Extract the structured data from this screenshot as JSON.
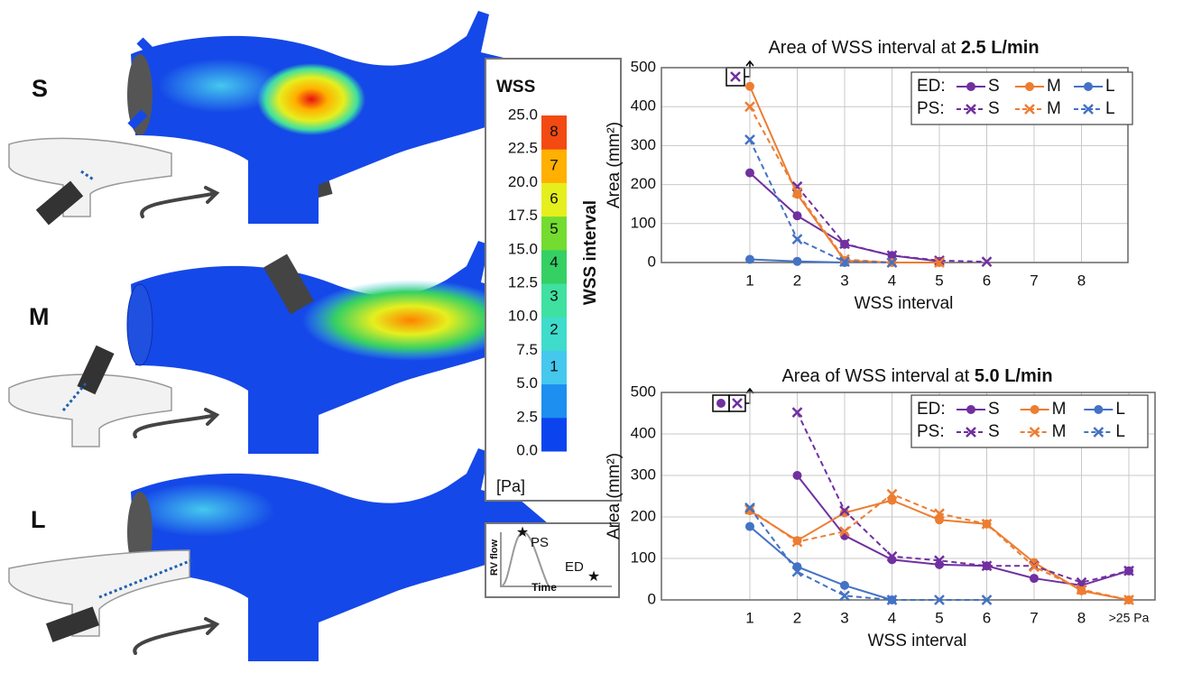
{
  "panels": {
    "labels": [
      "S",
      "M",
      "L"
    ]
  },
  "colorbar": {
    "title": "WSS",
    "unit": "[Pa]",
    "axis_label": "WSS interval",
    "lim": [
      0,
      25
    ],
    "ticks": [
      {
        "value": 0,
        "label": "0.0"
      },
      2.5,
      {
        "value": 5,
        "label": "5.0"
      },
      7.5,
      {
        "value": 10,
        "label": "10.0"
      },
      12.5,
      {
        "value": 15,
        "label": "15.0"
      },
      17.5,
      {
        "value": 20,
        "label": "20.0"
      },
      22.5,
      {
        "value": 25,
        "label": "25.0"
      }
    ],
    "colors": [
      "#0b44ef",
      "#1c8ff0",
      "#45c8ee",
      "#3fdccc",
      "#3fe0a0",
      "#34d064",
      "#74dc30",
      "#e6ef1e",
      "#ffb000",
      "#f24a12"
    ],
    "interval_labels": [
      "1",
      "2",
      "3",
      "4",
      "5",
      "6",
      "7",
      "8"
    ]
  },
  "flow_inset": {
    "y_label": "RV flow",
    "x_label": "Time",
    "peak_label": "PS",
    "end_label": "ED"
  },
  "chart_data": [
    {
      "type": "line",
      "title": "Area of WSS interval at",
      "title_emphasis": "2.5 L/min",
      "x_label": "WSS interval",
      "y_label": "Area (mm²)",
      "categories": [
        "1",
        "2",
        "3",
        "4",
        "5",
        "6",
        "7",
        "8"
      ],
      "ylim": [
        0,
        500
      ],
      "yticks": [
        0,
        100,
        200,
        300,
        400,
        500
      ],
      "grid": true,
      "legend_groups": [
        {
          "label": "ED:",
          "style": "solid"
        },
        {
          "label": "PS:",
          "style": "dashed"
        }
      ],
      "series": [
        {
          "name": "S",
          "color": "#7030a0",
          "style": "solid",
          "marker": "circle",
          "values": [
            230,
            120,
            47,
            18,
            3,
            null,
            null,
            null
          ]
        },
        {
          "name": "M",
          "color": "#ed7d31",
          "style": "solid",
          "marker": "circle",
          "values": [
            452,
            175,
            5,
            0,
            0,
            null,
            null,
            null
          ]
        },
        {
          "name": "L",
          "color": "#4472c4",
          "style": "solid",
          "marker": "circle",
          "values": [
            8,
            3,
            0,
            null,
            null,
            null,
            null,
            null
          ]
        },
        {
          "name": "S",
          "color": "#7030a0",
          "style": "dashed",
          "marker": "x",
          "values": [
            null,
            195,
            48,
            18,
            5,
            2,
            null,
            null
          ]
        },
        {
          "name": "M",
          "color": "#ed7d31",
          "style": "dashed",
          "marker": "x",
          "values": [
            400,
            180,
            8,
            0,
            0,
            null,
            null,
            null
          ]
        },
        {
          "name": "L",
          "color": "#4472c4",
          "style": "dashed",
          "marker": "x",
          "values": [
            315,
            60,
            2,
            0,
            null,
            null,
            null,
            null
          ]
        }
      ]
    },
    {
      "type": "line",
      "title": "Area of WSS interval at",
      "title_emphasis": "5.0 L/min",
      "x_label": "WSS interval",
      "y_label": "Area (mm²)",
      "categories": [
        "1",
        "2",
        "3",
        "4",
        "5",
        "6",
        "7",
        "8",
        ">25 Pa"
      ],
      "ylim": [
        0,
        500
      ],
      "yticks": [
        0,
        100,
        200,
        300,
        400,
        500
      ],
      "grid": true,
      "legend_groups": [
        {
          "label": "ED:",
          "style": "solid"
        },
        {
          "label": "PS:",
          "style": "dashed"
        }
      ],
      "series": [
        {
          "name": "S",
          "color": "#7030a0",
          "style": "solid",
          "marker": "circle",
          "values": [
            null,
            300,
            155,
            97,
            85,
            82,
            52,
            35,
            70
          ]
        },
        {
          "name": "M",
          "color": "#ed7d31",
          "style": "solid",
          "marker": "circle",
          "values": [
            215,
            143,
            210,
            240,
            193,
            183,
            90,
            22,
            0
          ]
        },
        {
          "name": "L",
          "color": "#4472c4",
          "style": "solid",
          "marker": "circle",
          "values": [
            177,
            80,
            35,
            0,
            null,
            null,
            null,
            null,
            null
          ]
        },
        {
          "name": "S",
          "color": "#7030a0",
          "style": "dashed",
          "marker": "x",
          "values": [
            null,
            452,
            215,
            105,
            95,
            82,
            82,
            42,
            70
          ]
        },
        {
          "name": "M",
          "color": "#ed7d31",
          "style": "dashed",
          "marker": "x",
          "values": [
            218,
            140,
            165,
            255,
            208,
            183,
            80,
            25,
            0
          ]
        },
        {
          "name": "L",
          "color": "#4472c4",
          "style": "dashed",
          "marker": "x",
          "values": [
            222,
            68,
            10,
            0,
            0,
            0,
            null,
            null,
            null
          ]
        }
      ]
    }
  ]
}
